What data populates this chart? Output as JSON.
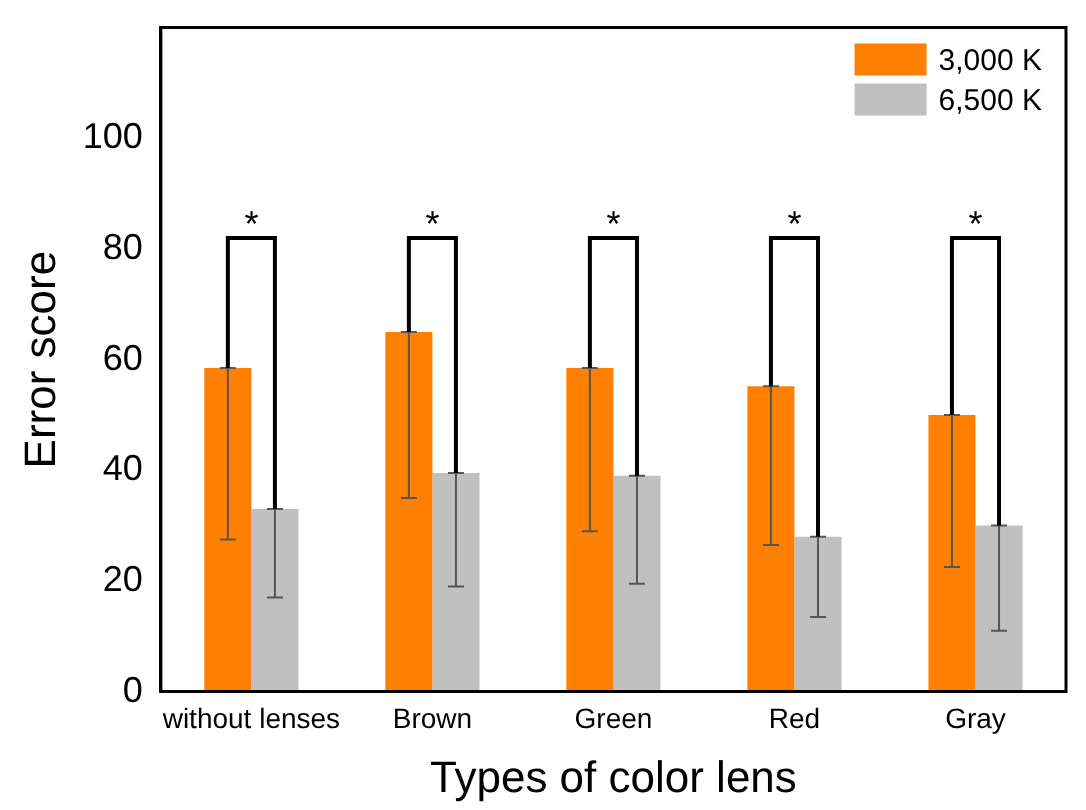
{
  "chart_data": {
    "type": "bar",
    "xlabel": "Types of color lens",
    "ylabel": "Error score",
    "categories": [
      "without lenses",
      "Brown",
      "Green",
      "Red",
      "Gray"
    ],
    "series": [
      {
        "name": "3,000 K",
        "color": "#ff8000",
        "values": [
          58.5,
          65,
          58.5,
          55.2,
          50
        ],
        "errors": [
          [
            27.5,
            58.5
          ],
          [
            35,
            65
          ],
          [
            29,
            58.5
          ],
          [
            26.5,
            55.2
          ],
          [
            22.5,
            50
          ]
        ]
      },
      {
        "name": "6,500 K",
        "color": "#c0c0c0",
        "values": [
          33,
          39.5,
          39,
          28,
          30
        ],
        "errors": [
          [
            17,
            33
          ],
          [
            19,
            39.5
          ],
          [
            19.5,
            39
          ],
          [
            13.5,
            28
          ],
          [
            11,
            30
          ]
        ]
      }
    ],
    "ylim": [
      0,
      120
    ],
    "yticks": [
      0,
      20,
      40,
      60,
      80,
      100
    ],
    "grid": false,
    "legend": "top right",
    "annotations": [
      "*",
      "*",
      "*",
      "*",
      "*"
    ]
  }
}
